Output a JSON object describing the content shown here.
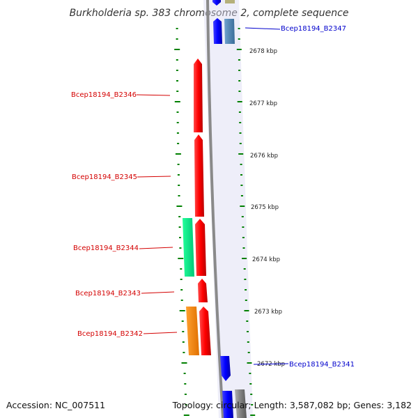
{
  "title": "Burkholderia sp. 383 chromosome 2, complete sequence",
  "footer": {
    "accession": "Accession: NC_007511",
    "topology": "Topology: circular; Length: 3,587,082 bp; Genes: 3,182"
  },
  "scale": {
    "unit": "kbp",
    "labels": [
      "2678 kbp",
      "2677 kbp",
      "2676 kbp",
      "2675 kbp",
      "2674 kbp",
      "2673 kbp",
      "2672 kbp"
    ]
  },
  "genes": [
    {
      "id": "Bcep18194_B2347",
      "color": "#0000cc",
      "strand": "right"
    },
    {
      "id": "Bcep18194_B2346",
      "color": "#d40000",
      "strand": "left"
    },
    {
      "id": "Bcep18194_B2345",
      "color": "#d40000",
      "strand": "left"
    },
    {
      "id": "Bcep18194_B2344",
      "color": "#d40000",
      "strand": "left"
    },
    {
      "id": "Bcep18194_B2343",
      "color": "#d40000",
      "strand": "left"
    },
    {
      "id": "Bcep18194_B2342",
      "color": "#d40000",
      "strand": "left"
    },
    {
      "id": "Bcep18194_B2341",
      "color": "#0000cc",
      "strand": "right"
    }
  ],
  "colors": {
    "backbone": "#808080",
    "forward_gene": "#0000ff",
    "reverse_gene": "#ff0000",
    "steelblue_feature": "#4682b4",
    "green_feature": "#00ee88",
    "orange_feature": "#ff8800",
    "olive_feature": "#b5b07a",
    "tick": "#008000"
  }
}
